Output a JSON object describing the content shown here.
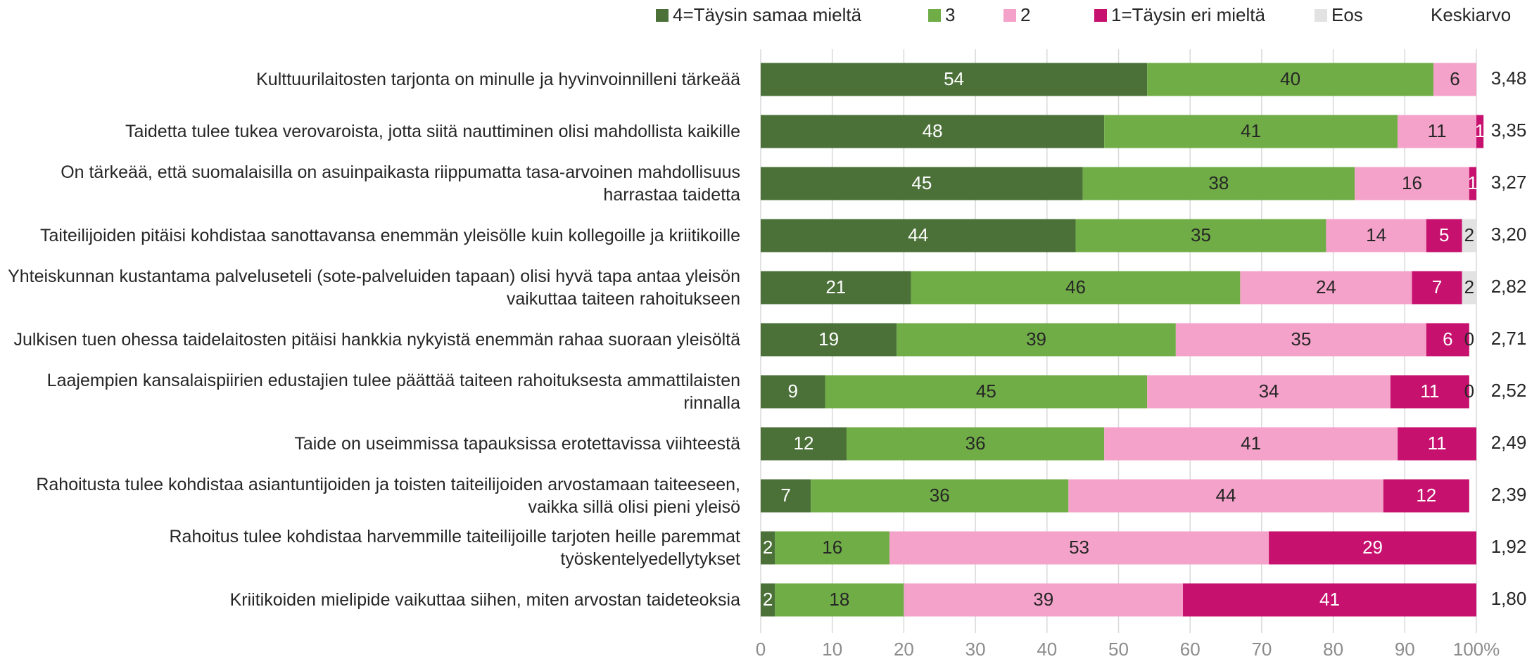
{
  "chart_data": {
    "type": "stacked_bar_horizontal",
    "categories": [
      "Kulttuurilaitosten tarjonta on minulle ja hyvinvoinnilleni tärkeää",
      "Taidetta tulee tukea verovaroista, jotta siitä nauttiminen olisi mahdollista kaikille",
      "On tärkeää, että suomalaisilla on asuinpaikasta riippumatta tasa-arvoinen mahdollisuus harrastaa taidetta",
      "Taiteilijoiden pitäisi kohdistaa sanottavansa enemmän yleisölle kuin kollegoille ja kriitikoille",
      "Yhteiskunnan kustantama palveluseteli (sote-palveluiden tapaan) olisi hyvä tapa antaa yleisön vaikuttaa taiteen rahoitukseen",
      "Julkisen tuen ohessa taidelaitosten pitäisi hankkia nykyistä enemmän rahaa suoraan yleisöltä",
      "Laajempien kansalaispiirien edustajien tulee päättää taiteen rahoituksesta ammattilaisten rinnalla",
      "Taide on useimmissa tapauksissa erotettavissa viihteestä",
      "Rahoitusta tulee kohdistaa asiantuntijoiden ja toisten taiteilijoiden arvostamaan taiteeseen, vaikka sillä olisi pieni yleisö",
      "Rahoitus tulee kohdistaa harvemmille taiteilijoille tarjoten heille paremmat työskentelyedellytykset",
      "Kriitikoiden mielipide vaikuttaa siihen, miten arvostan taideteoksia"
    ],
    "series": [
      {
        "name": "4=Täysin samaa mieltä",
        "color": "#4b7139",
        "label_color": "#ffffff",
        "values": [
          54,
          48,
          45,
          44,
          21,
          19,
          9,
          12,
          7,
          2,
          2
        ]
      },
      {
        "name": "3",
        "color": "#70ad47",
        "label_color": "#262626",
        "values": [
          40,
          41,
          38,
          35,
          46,
          39,
          45,
          36,
          36,
          16,
          18
        ]
      },
      {
        "name": "2",
        "color": "#f4a2c9",
        "label_color": "#262626",
        "values": [
          6,
          11,
          16,
          14,
          24,
          35,
          34,
          41,
          44,
          53,
          39
        ]
      },
      {
        "name": "1=Täysin eri mieltä",
        "color": "#c6116e",
        "label_color": "#ffffff",
        "values": [
          null,
          1,
          1,
          5,
          7,
          6,
          11,
          11,
          12,
          29,
          41
        ]
      },
      {
        "name": "Eos",
        "color": "#e2e2e2",
        "label_color": "#262626",
        "values": [
          null,
          null,
          null,
          2,
          2,
          0,
          0,
          null,
          null,
          null,
          null
        ]
      }
    ],
    "mean_title": "Keskiarvo",
    "means": [
      3.48,
      3.35,
      3.27,
      3.2,
      2.82,
      2.71,
      2.52,
      2.49,
      2.39,
      1.92,
      1.8
    ],
    "mean_labels": [
      "3,48",
      "3,35",
      "3,27",
      "3,20",
      "2,82",
      "2,71",
      "2,52",
      "2,49",
      "2,39",
      "1,92",
      "1,80"
    ],
    "xlim": [
      0,
      100
    ],
    "xticks": [
      0,
      10,
      20,
      30,
      40,
      50,
      60,
      70,
      80,
      90,
      {
        "value": 100,
        "label": "100%"
      }
    ],
    "grid": true
  }
}
